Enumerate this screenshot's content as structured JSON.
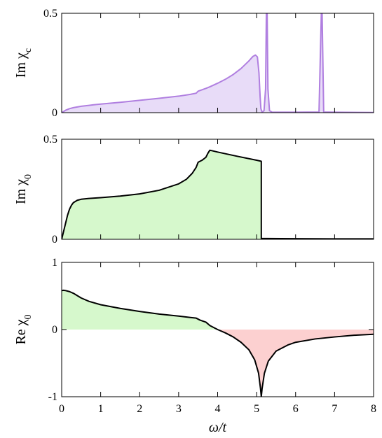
{
  "chart_data": [
    {
      "type": "area",
      "ylabel_main": "Im χ",
      "ylabel_sub": "c",
      "xlim": [
        0,
        8
      ],
      "ylim": [
        0,
        0.5
      ],
      "yticks": [
        "0",
        "0.5"
      ],
      "series": [
        {
          "line_color": "#b07fe0",
          "fill_color": "#e8dcf8",
          "points": [
            [
              0,
              0
            ],
            [
              0.05,
              0.006
            ],
            [
              0.1,
              0.012
            ],
            [
              0.2,
              0.02
            ],
            [
              0.3,
              0.025
            ],
            [
              0.5,
              0.032
            ],
            [
              0.8,
              0.039
            ],
            [
              1.0,
              0.043
            ],
            [
              1.5,
              0.052
            ],
            [
              2.0,
              0.062
            ],
            [
              2.5,
              0.072
            ],
            [
              3.0,
              0.083
            ],
            [
              3.3,
              0.092
            ],
            [
              3.45,
              0.098
            ],
            [
              3.5,
              0.108
            ],
            [
              3.6,
              0.115
            ],
            [
              3.7,
              0.122
            ],
            [
              3.8,
              0.13
            ],
            [
              4.0,
              0.148
            ],
            [
              4.2,
              0.168
            ],
            [
              4.4,
              0.192
            ],
            [
              4.6,
              0.222
            ],
            [
              4.8,
              0.26
            ],
            [
              4.9,
              0.282
            ],
            [
              4.97,
              0.29
            ],
            [
              5.02,
              0.28
            ],
            [
              5.06,
              0.2
            ],
            [
              5.09,
              0.08
            ],
            [
              5.11,
              0.02
            ],
            [
              5.14,
              0.003
            ],
            [
              5.19,
              0.01
            ],
            [
              5.23,
              0.12
            ],
            [
              5.25,
              0.5
            ],
            [
              5.27,
              0.5
            ],
            [
              5.29,
              0.12
            ],
            [
              5.33,
              0.01
            ],
            [
              5.4,
              0.002
            ],
            [
              6.0,
              0.002
            ],
            [
              6.6,
              0.003
            ],
            [
              6.66,
              0.5
            ],
            [
              6.68,
              0.5
            ],
            [
              6.72,
              0.003
            ],
            [
              7.0,
              0.002
            ],
            [
              8.0,
              0.001
            ]
          ]
        }
      ]
    },
    {
      "type": "area",
      "ylabel_main": "Im χ",
      "ylabel_sub": "0",
      "xlim": [
        0,
        8
      ],
      "ylim": [
        0,
        0.5
      ],
      "yticks": [
        "0",
        "0.5"
      ],
      "series": [
        {
          "line_color": "#000000",
          "fill_color": "#d6f8cc",
          "points": [
            [
              0,
              0
            ],
            [
              0.05,
              0.04
            ],
            [
              0.1,
              0.08
            ],
            [
              0.15,
              0.12
            ],
            [
              0.2,
              0.15
            ],
            [
              0.25,
              0.17
            ],
            [
              0.3,
              0.183
            ],
            [
              0.4,
              0.195
            ],
            [
              0.5,
              0.2
            ],
            [
              0.7,
              0.204
            ],
            [
              1.0,
              0.208
            ],
            [
              1.5,
              0.216
            ],
            [
              2.0,
              0.227
            ],
            [
              2.5,
              0.245
            ],
            [
              3.0,
              0.277
            ],
            [
              3.2,
              0.3
            ],
            [
              3.35,
              0.33
            ],
            [
              3.45,
              0.36
            ],
            [
              3.5,
              0.385
            ],
            [
              3.6,
              0.395
            ],
            [
              3.7,
              0.41
            ],
            [
              3.75,
              0.43
            ],
            [
              3.8,
              0.445
            ],
            [
              3.85,
              0.443
            ],
            [
              4.0,
              0.436
            ],
            [
              4.5,
              0.415
            ],
            [
              5.0,
              0.395
            ],
            [
              5.12,
              0.39
            ],
            [
              5.12,
              0.004
            ],
            [
              6.0,
              0.003
            ],
            [
              7.0,
              0.002
            ],
            [
              8.0,
              0.002
            ]
          ]
        }
      ]
    },
    {
      "type": "area",
      "ylabel_main": "Re χ",
      "ylabel_sub": "0",
      "xlim": [
        0,
        8
      ],
      "ylim": [
        -1,
        1
      ],
      "yticks": [
        "-1",
        "0",
        "1"
      ],
      "xticks": [
        "0",
        "1",
        "2",
        "3",
        "4",
        "5",
        "6",
        "7",
        "8"
      ],
      "xlabel_main": "ω",
      "xlabel_rest": "/t",
      "series": [
        {
          "line_color": "#000000",
          "fill_positive": "#d6f8cc",
          "fill_negative": "#fcd0d0",
          "points": [
            [
              0,
              0.58
            ],
            [
              0.05,
              0.585
            ],
            [
              0.1,
              0.58
            ],
            [
              0.2,
              0.565
            ],
            [
              0.3,
              0.54
            ],
            [
              0.4,
              0.505
            ],
            [
              0.5,
              0.47
            ],
            [
              0.7,
              0.42
            ],
            [
              1.0,
              0.37
            ],
            [
              1.5,
              0.315
            ],
            [
              2.0,
              0.27
            ],
            [
              2.5,
              0.23
            ],
            [
              3.0,
              0.2
            ],
            [
              3.3,
              0.18
            ],
            [
              3.45,
              0.17
            ],
            [
              3.55,
              0.14
            ],
            [
              3.7,
              0.11
            ],
            [
              3.8,
              0.06
            ],
            [
              3.9,
              0.03
            ],
            [
              4.0,
              0.0
            ],
            [
              4.2,
              -0.05
            ],
            [
              4.4,
              -0.11
            ],
            [
              4.6,
              -0.19
            ],
            [
              4.8,
              -0.3
            ],
            [
              4.95,
              -0.45
            ],
            [
              5.05,
              -0.65
            ],
            [
              5.1,
              -0.88
            ],
            [
              5.12,
              -1.0
            ],
            [
              5.14,
              -0.88
            ],
            [
              5.2,
              -0.65
            ],
            [
              5.3,
              -0.47
            ],
            [
              5.5,
              -0.32
            ],
            [
              5.8,
              -0.23
            ],
            [
              6.0,
              -0.19
            ],
            [
              6.5,
              -0.14
            ],
            [
              7.0,
              -0.11
            ],
            [
              7.5,
              -0.085
            ],
            [
              8.0,
              -0.07
            ]
          ]
        }
      ]
    }
  ]
}
